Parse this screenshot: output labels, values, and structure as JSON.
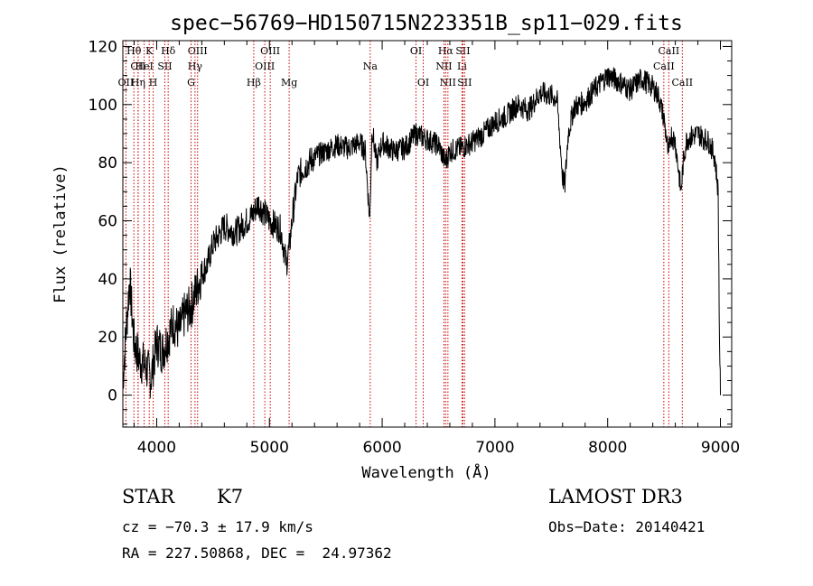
{
  "chart_data": {
    "type": "line",
    "title": "spec−56769−HD150715N223351B_sp11−029.fits",
    "xlabel": "Wavelength (Å)",
    "ylabel": "Flux (relative)",
    "xlim": [
      3700,
      9100
    ],
    "ylim": [
      -11,
      122
    ],
    "xticks": [
      4000,
      5000,
      6000,
      7000,
      8000,
      9000
    ],
    "yticks": [
      0,
      20,
      40,
      60,
      80,
      100,
      120
    ],
    "grid": false,
    "series": [
      {
        "x": [
          3700,
          3760,
          3800,
          3850,
          3900,
          3950,
          4000,
          4050,
          4100,
          4150,
          4200,
          4250,
          4300,
          4350,
          4400,
          4450,
          4500,
          4600,
          4700,
          4800,
          4850,
          4900,
          5000,
          5100,
          5150,
          5180,
          5200,
          5250,
          5300,
          5400,
          5500,
          5600,
          5700,
          5800,
          5850,
          5890,
          5910,
          5950,
          6000,
          6100,
          6200,
          6300,
          6400,
          6500,
          6560,
          6600,
          6700,
          6800,
          6900,
          7000,
          7100,
          7200,
          7300,
          7400,
          7500,
          7550,
          7600,
          7620,
          7650,
          7700,
          7800,
          7900,
          8000,
          8100,
          8200,
          8300,
          8400,
          8450,
          8500,
          8540,
          8560,
          8600,
          8650,
          8670,
          8700,
          8800,
          8900,
          8950,
          8980,
          8990,
          9000
        ],
        "values": [
          5,
          40,
          18,
          12,
          10,
          6,
          18,
          15,
          20,
          25,
          22,
          28,
          30,
          36,
          42,
          45,
          52,
          58,
          56,
          60,
          62,
          66,
          60,
          57,
          45,
          52,
          60,
          75,
          78,
          82,
          84,
          86,
          85,
          87,
          84,
          60,
          92,
          80,
          87,
          84,
          85,
          90,
          88,
          86,
          80,
          84,
          85,
          87,
          90,
          94,
          96,
          100,
          98,
          104,
          103,
          102,
          75,
          72,
          90,
          99,
          101,
          106,
          110,
          108,
          105,
          109,
          106,
          103,
          95,
          82,
          90,
          87,
          70,
          80,
          88,
          90,
          87,
          82,
          70,
          25,
          0
        ]
      }
    ],
    "lines": [
      {
        "label": "Hθ",
        "x": 3798,
        "row": 0
      },
      {
        "label": "CII",
        "x": 3836,
        "row": 1
      },
      {
        "label": "OII",
        "x": 3727,
        "row": 2
      },
      {
        "label": "K",
        "x": 3934,
        "row": 0
      },
      {
        "label": "HeI",
        "x": 3889,
        "row": 1
      },
      {
        "label": "Hη",
        "x": 3835,
        "row": 2
      },
      {
        "label": "Hδ",
        "x": 4102,
        "row": 0
      },
      {
        "label": "SII",
        "x": 4072,
        "row": 1
      },
      {
        "label": "H",
        "x": 3969,
        "row": 2
      },
      {
        "label": "OIII",
        "x": 4363,
        "row": 0
      },
      {
        "label": "Hγ",
        "x": 4340,
        "row": 1
      },
      {
        "label": "G",
        "x": 4305,
        "row": 2
      },
      {
        "label": "OIII",
        "x": 5007,
        "row": 0
      },
      {
        "label": "OIII",
        "x": 4959,
        "row": 1
      },
      {
        "label": "Hβ",
        "x": 4861,
        "row": 2
      },
      {
        "label": "Mg",
        "x": 5175,
        "row": 2
      },
      {
        "label": "Na",
        "x": 5894,
        "row": 1
      },
      {
        "label": "OI",
        "x": 6300,
        "row": 0
      },
      {
        "label": "OI",
        "x": 6364,
        "row": 2
      },
      {
        "label": "Hα",
        "x": 6563,
        "row": 0
      },
      {
        "label": "NII",
        "x": 6548,
        "row": 1
      },
      {
        "label": "NII",
        "x": 6583,
        "row": 2
      },
      {
        "label": "SII",
        "x": 6716,
        "row": 0
      },
      {
        "label": "Li",
        "x": 6708,
        "row": 1
      },
      {
        "label": "SII",
        "x": 6731,
        "row": 2
      },
      {
        "label": "CaII",
        "x": 8542,
        "row": 0
      },
      {
        "label": "CaII",
        "x": 8498,
        "row": 1
      },
      {
        "label": "CaII",
        "x": 8662,
        "row": 2
      }
    ],
    "colors": {
      "axes": "#000000",
      "spectrum": "#000000",
      "line_marks": "#cc0000"
    }
  },
  "info": {
    "class_label": "STAR",
    "subclass": "K7",
    "survey": "LAMOST DR3",
    "cz": "cz = −70.3 ± 17.9 km/s",
    "obs_date": "Obs−Date: 20140421",
    "coords": "RA = 227.50868, DEC =  24.97362"
  }
}
